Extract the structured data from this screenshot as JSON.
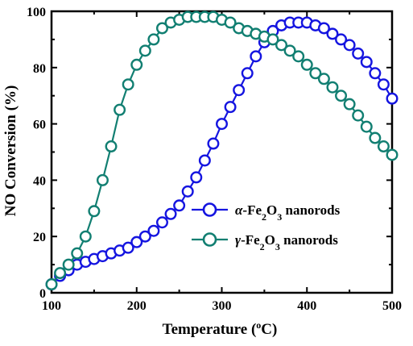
{
  "chart_data": {
    "type": "line",
    "title": "",
    "xlabel_main": "Temperature (",
    "xlabel_sup": "o",
    "xlabel_end": "C)",
    "ylabel": "NO Conversion (%)",
    "xlim": [
      100,
      500
    ],
    "ylim": [
      0,
      100
    ],
    "xticks": [
      100,
      200,
      300,
      400,
      500
    ],
    "yticks": [
      0,
      20,
      40,
      60,
      80,
      100
    ],
    "grid": false,
    "legend_position": "center-right",
    "series": [
      {
        "name_prefix": "α",
        "name_chem": "-Fe",
        "name_sub1": "2",
        "name_mid": "O",
        "name_sub2": "3",
        "name_suffix": " nanorods",
        "color": "#1515e0",
        "x": [
          100,
          110,
          120,
          130,
          140,
          150,
          160,
          170,
          180,
          190,
          200,
          210,
          220,
          230,
          240,
          250,
          260,
          270,
          280,
          290,
          300,
          310,
          320,
          330,
          340,
          350,
          360,
          370,
          380,
          390,
          400,
          410,
          420,
          430,
          440,
          450,
          460,
          470,
          480,
          490,
          500
        ],
        "y": [
          3,
          6,
          8,
          10,
          11,
          12,
          13,
          14,
          15,
          16,
          18,
          20,
          22,
          25,
          28,
          31,
          36,
          41,
          47,
          53,
          60,
          66,
          72,
          78,
          84,
          89,
          93,
          95,
          96,
          96,
          96,
          95,
          94,
          92,
          90,
          88,
          85,
          82,
          78,
          74,
          69
        ]
      },
      {
        "name_prefix": "γ",
        "name_chem": "-Fe",
        "name_sub1": "2",
        "name_mid": "O",
        "name_sub2": "3",
        "name_suffix": " nanorods",
        "color": "#127f72",
        "x": [
          100,
          110,
          120,
          130,
          140,
          150,
          160,
          170,
          180,
          190,
          200,
          210,
          220,
          230,
          240,
          250,
          260,
          270,
          280,
          290,
          300,
          310,
          320,
          330,
          340,
          350,
          360,
          370,
          380,
          390,
          400,
          410,
          420,
          430,
          440,
          450,
          460,
          470,
          480,
          490,
          500
        ],
        "y": [
          3,
          7,
          10,
          14,
          20,
          29,
          40,
          52,
          65,
          74,
          81,
          86,
          90,
          94,
          96,
          97,
          98,
          98,
          98,
          98,
          97,
          96,
          94,
          93,
          92,
          91,
          90,
          88,
          86,
          84,
          81,
          78,
          76,
          73,
          70,
          67,
          63,
          59,
          55,
          52,
          49
        ]
      }
    ]
  }
}
